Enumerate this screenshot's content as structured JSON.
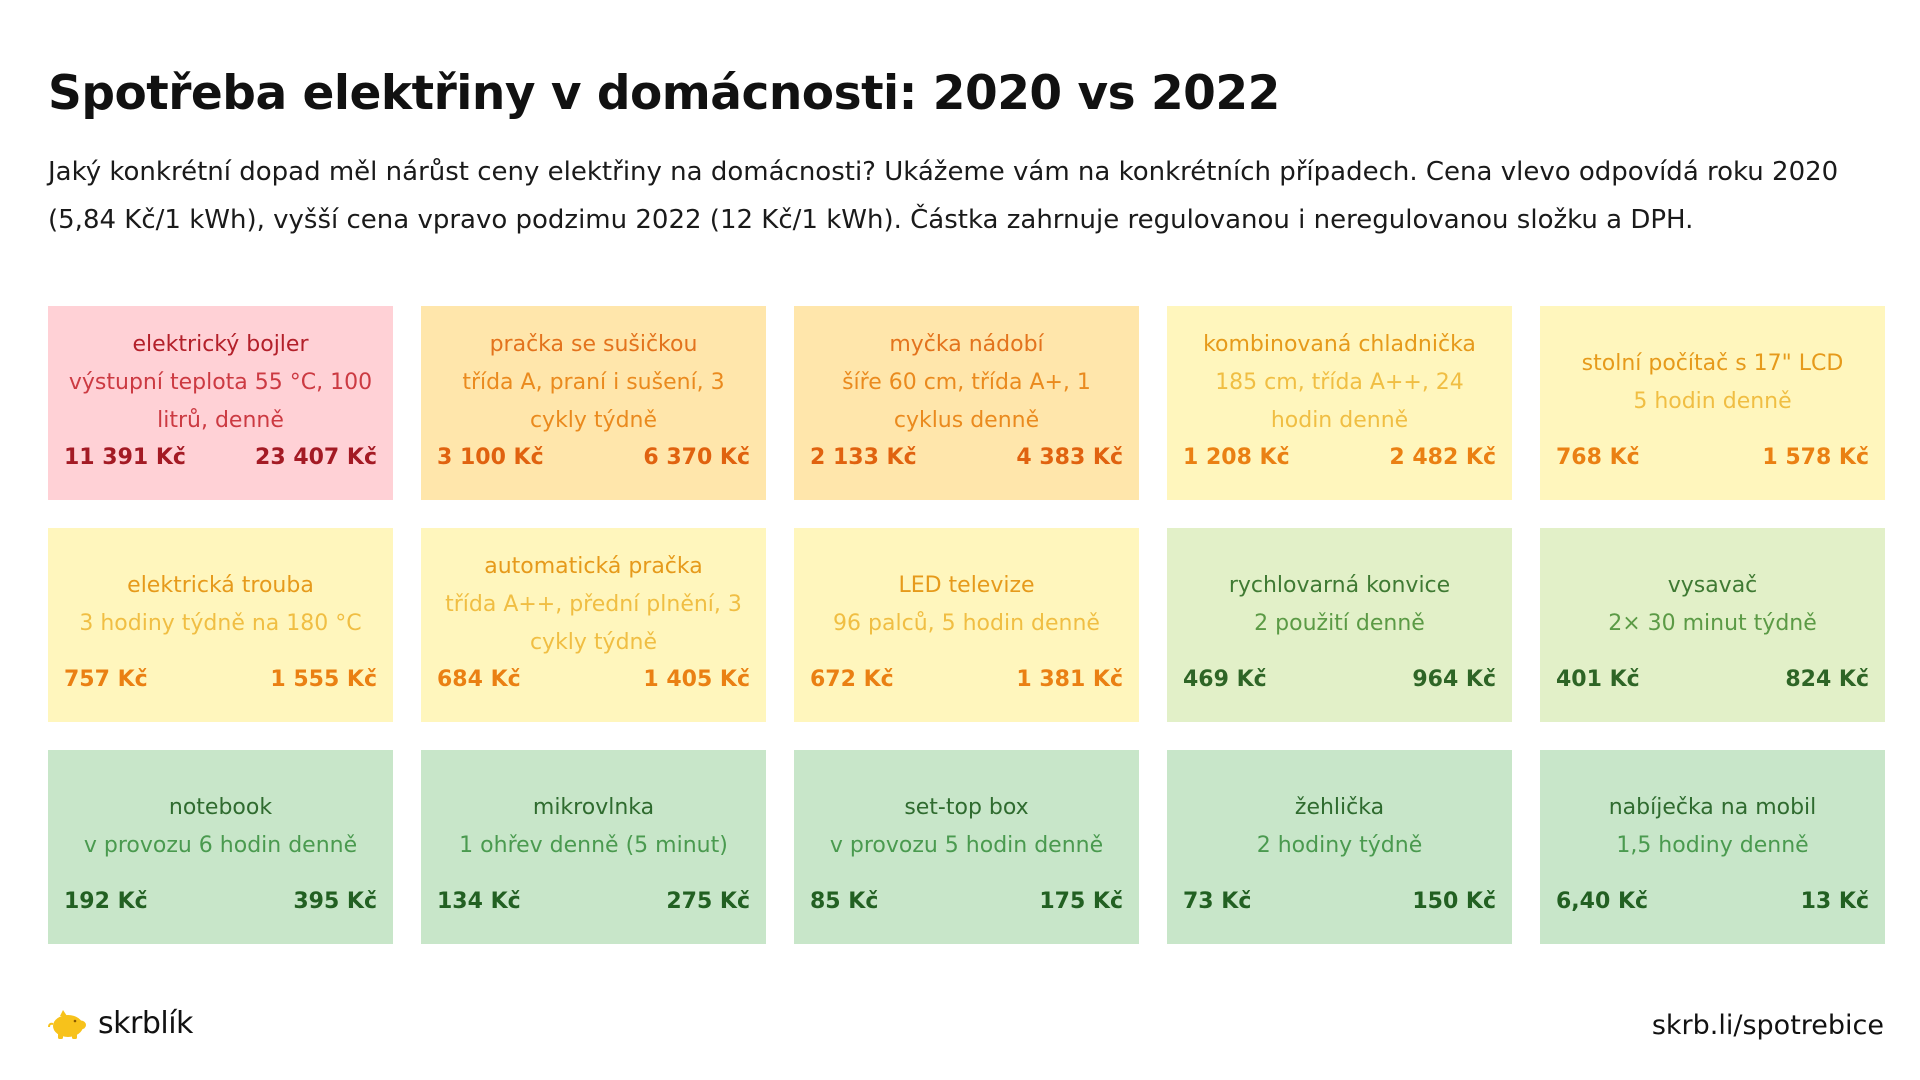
{
  "title": "Spotřeba elektřiny v domácnosti: 2020 vs 2022",
  "subtitle": "Jaký konkrétní dopad měl nárůst ceny elektřiny na domácnosti? Ukážeme vám na konkrétních případech. Cena vlevo odpovídá roku 2020 (5,84 Kč/1 kWh), vyšší cena vpravo podzimu 2022 (12 Kč/1 kWh). Částka zahrnuje regulovanou i neregulovanou složku a DPH.",
  "colors": {
    "red": {
      "bg": "#ffd1d6",
      "name": "#b3202a",
      "desc": "#cc3a42",
      "price": "#a31a24"
    },
    "orange": {
      "bg": "#ffe6ab",
      "name": "#e3731d",
      "desc": "#ea8a1e",
      "price": "#e0620f"
    },
    "yellow": {
      "bg": "#fff6bd",
      "name": "#e69a1b",
      "desc": "#f0be43",
      "price": "#ea8013"
    },
    "lightgreen": {
      "bg": "#e2f0c8",
      "name": "#3f7a33",
      "desc": "#5b9a45",
      "price": "#2e6526"
    },
    "green": {
      "bg": "#c8e6c9",
      "name": "#2f6b2f",
      "desc": "#4a9a4f",
      "price": "#226022"
    }
  },
  "cards": [
    {
      "name": "elektrický bojler",
      "desc": "výstupní teplota 55 °C, 100 litrů, denně",
      "price2020": "11 391 Kč",
      "price2022": "23 407 Kč",
      "tone": "red"
    },
    {
      "name": "pračka se sušičkou",
      "desc": "třída A, praní i sušení, 3 cykly týdně",
      "price2020": "3 100 Kč",
      "price2022": "6 370 Kč",
      "tone": "orange"
    },
    {
      "name": "myčka nádobí",
      "desc": "šíře 60 cm, třída A+, 1 cyklus denně",
      "price2020": "2 133 Kč",
      "price2022": "4 383 Kč",
      "tone": "orange"
    },
    {
      "name": "kombinovaná chladnička",
      "desc": "185 cm, třída A++, 24 hodin denně",
      "price2020": "1 208 Kč",
      "price2022": "2 482 Kč",
      "tone": "yellow"
    },
    {
      "name": "stolní počítač s 17\" LCD",
      "desc": "5 hodin denně",
      "price2020": "768 Kč",
      "price2022": "1 578 Kč",
      "tone": "yellow"
    },
    {
      "name": "elektrická trouba",
      "desc": "3 hodiny týdně na 180 °C",
      "price2020": "757 Kč",
      "price2022": "1 555 Kč",
      "tone": "yellow"
    },
    {
      "name": "automatická pračka",
      "desc": "třída A++, přední plnění, 3 cykly týdně",
      "price2020": "684 Kč",
      "price2022": "1 405 Kč",
      "tone": "yellow"
    },
    {
      "name": "LED televize",
      "desc": "96 palců, 5 hodin denně",
      "price2020": "672 Kč",
      "price2022": "1 381 Kč",
      "tone": "yellow"
    },
    {
      "name": "rychlovarná konvice",
      "desc": "2 použití denně",
      "price2020": "469 Kč",
      "price2022": "964 Kč",
      "tone": "lightgreen"
    },
    {
      "name": "vysavač",
      "desc": "2× 30 minut týdně",
      "price2020": "401 Kč",
      "price2022": "824 Kč",
      "tone": "lightgreen"
    },
    {
      "name": "notebook",
      "desc": "v provozu 6 hodin denně",
      "price2020": "192 Kč",
      "price2022": "395 Kč",
      "tone": "green"
    },
    {
      "name": "mikrovlnka",
      "desc": "1 ohřev denně (5 minut)",
      "price2020": "134 Kč",
      "price2022": "275 Kč",
      "tone": "green"
    },
    {
      "name": "set-top box",
      "desc": "v provozu 5 hodin denně",
      "price2020": "85 Kč",
      "price2022": "175 Kč",
      "tone": "green"
    },
    {
      "name": "žehlička",
      "desc": "2 hodiny týdně",
      "price2020": "73 Kč",
      "price2022": "150 Kč",
      "tone": "green"
    },
    {
      "name": "nabíječka na mobil",
      "desc": "1,5 hodiny denně",
      "price2020": "6,40 Kč",
      "price2022": "13 Kč",
      "tone": "green"
    }
  ],
  "footer": {
    "logo_icon": "piggy-bank-icon",
    "logo_color": "#f7c21b",
    "logo_text": "skrblík",
    "url": "skrb.li/spotrebice"
  }
}
